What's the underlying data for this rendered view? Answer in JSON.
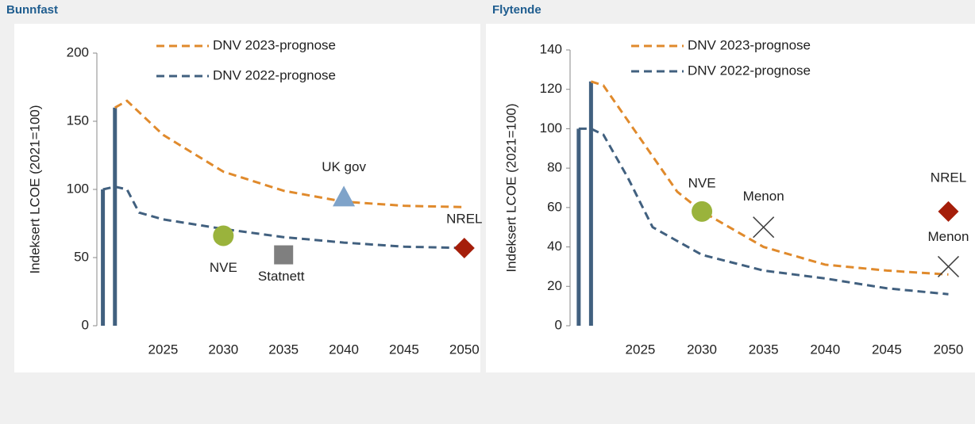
{
  "chart_data": [
    {
      "type": "line",
      "title": "Bunnfast",
      "ylabel": "Indeksert LCOE (2021=100)",
      "xlim": [
        2019.5,
        2051
      ],
      "xticks": [
        2025,
        2030,
        2035,
        2040,
        2045,
        2050
      ],
      "ylim": [
        0,
        200
      ],
      "yticks": [
        0,
        50,
        100,
        150,
        200
      ],
      "series": [
        {
          "name": "DNV 2023-prognose",
          "color": "#e08a2c",
          "x": [
            2021,
            2022,
            2025,
            2030,
            2035,
            2040,
            2045,
            2050
          ],
          "values": [
            160,
            165,
            140,
            113,
            99,
            91,
            88,
            87
          ]
        },
        {
          "name": "DNV 2022-prognose",
          "color": "#41607f",
          "x": [
            2020,
            2021,
            2022,
            2023,
            2025,
            2030,
            2035,
            2040,
            2045,
            2050
          ],
          "values": [
            100,
            102,
            100,
            83,
            78,
            71,
            65,
            61,
            58,
            57
          ]
        }
      ],
      "bars": {
        "color": "#41607f",
        "x": [
          2020,
          2021
        ],
        "values": [
          100,
          160
        ]
      },
      "points": [
        {
          "label": "NVE",
          "x": 2030,
          "y": 66,
          "marker": "circle",
          "color": "#9ab33c"
        },
        {
          "label": "Statnett",
          "x": 2035,
          "y": 52,
          "marker": "square",
          "color": "#7f7f7f"
        },
        {
          "label": "UK gov",
          "x": 2040,
          "y": 94,
          "marker": "triangle",
          "color": "#7fa3c9"
        },
        {
          "label": "NREL",
          "x": 2050,
          "y": 57,
          "marker": "diamond",
          "color": "#a51e0a"
        }
      ]
    },
    {
      "type": "line",
      "title": "Flytende",
      "ylabel": "Indeksert LCOE (2021=100)",
      "xlim": [
        2019.3,
        2051
      ],
      "xticks": [
        2025,
        2030,
        2035,
        2040,
        2045,
        2050
      ],
      "ylim": [
        0,
        140
      ],
      "yticks": [
        0,
        20,
        40,
        60,
        80,
        100,
        120,
        140
      ],
      "series": [
        {
          "name": "DNV 2023-prognose",
          "color": "#e08a2c",
          "x": [
            2021,
            2022,
            2025,
            2028,
            2030,
            2035,
            2040,
            2045,
            2050
          ],
          "values": [
            124,
            122,
            95,
            68,
            58,
            40,
            31,
            28,
            26
          ]
        },
        {
          "name": "DNV 2022-prognose",
          "color": "#41607f",
          "x": [
            2020,
            2021,
            2022,
            2024,
            2026,
            2030,
            2035,
            2040,
            2045,
            2050
          ],
          "values": [
            100,
            100,
            97,
            75,
            50,
            36,
            28,
            24,
            19,
            16
          ]
        }
      ],
      "bars": {
        "color": "#41607f",
        "x": [
          2020,
          2021
        ],
        "values": [
          100,
          124
        ]
      },
      "points": [
        {
          "label": "NVE",
          "x": 2030,
          "y": 58,
          "marker": "circle",
          "color": "#9ab33c"
        },
        {
          "label": "Menon",
          "x": 2035,
          "y": 50,
          "marker": "cross",
          "color": "#404040"
        },
        {
          "label": "NREL",
          "x": 2050,
          "y": 58,
          "marker": "diamond",
          "color": "#a51e0a"
        },
        {
          "label": "Menon",
          "x": 2050,
          "y": 30,
          "marker": "cross",
          "color": "#404040"
        }
      ]
    }
  ]
}
